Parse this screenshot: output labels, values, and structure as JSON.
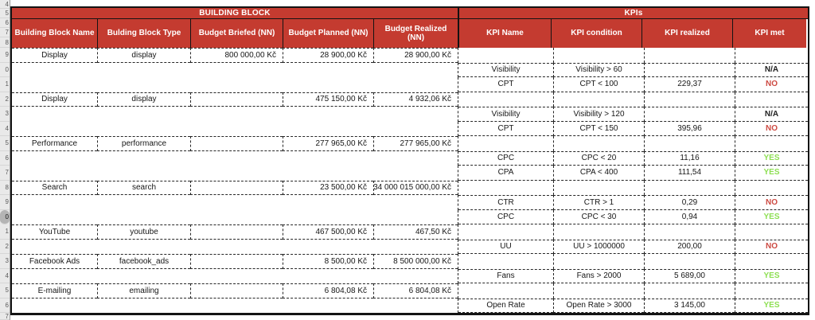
{
  "gutter": {
    "numbers": [
      "4",
      "5",
      "6",
      "7",
      "8",
      "9",
      "0",
      "1",
      "2",
      "3",
      "4",
      "5",
      "6",
      "7",
      "8",
      "9",
      "0",
      "1",
      "2",
      "3",
      "4",
      "5",
      "6",
      "7"
    ],
    "selected_index": 16
  },
  "table": {
    "sections": [
      {
        "title": "BUILDING BLOCK",
        "columns": [
          "Building Block Name",
          "Bulding Block Type",
          "Budget Briefed (NN)",
          "Budget Planned (NN)",
          "Budget Realized (NN)"
        ]
      },
      {
        "title": "KPIs",
        "columns": [
          "KPI Name",
          "KPI condition",
          "KPI realized",
          "KPI met"
        ]
      }
    ],
    "rows": [
      {
        "row": 9,
        "side": "left",
        "cells": [
          "Display",
          "display",
          "800 000,00 Kč",
          "28 900,00 Kč",
          "28 900,00 Kč"
        ]
      },
      {
        "row": 10,
        "side": "right",
        "cells": [
          "Visibility",
          "Visibility > 60",
          "",
          "N/A"
        ]
      },
      {
        "row": 11,
        "side": "right",
        "cells": [
          "CPT",
          "CPT < 100",
          "229,37",
          "NO"
        ]
      },
      {
        "row": 12,
        "side": "left",
        "cells": [
          "Display",
          "display",
          "",
          "475 150,00 Kč",
          "4 932,06 Kč"
        ]
      },
      {
        "row": 13,
        "side": "right",
        "cells": [
          "Visibility",
          "Visibility > 120",
          "",
          "N/A"
        ]
      },
      {
        "row": 14,
        "side": "right",
        "cells": [
          "CPT",
          "CPT < 150",
          "395,96",
          "NO"
        ]
      },
      {
        "row": 15,
        "side": "left",
        "cells": [
          "Performance",
          "performance",
          "",
          "277 965,00 Kč",
          "277 965,00 Kč"
        ]
      },
      {
        "row": 16,
        "side": "right",
        "cells": [
          "CPC",
          "CPC < 20",
          "11,16",
          "YES"
        ]
      },
      {
        "row": 17,
        "side": "right",
        "cells": [
          "CPA",
          "CPA < 400",
          "111,54",
          "YES"
        ]
      },
      {
        "row": 18,
        "side": "left",
        "cells": [
          "Search",
          "search",
          "",
          "23 500,00 Kč",
          "34 000 015 000,00 Kč"
        ]
      },
      {
        "row": 19,
        "side": "right",
        "cells": [
          "CTR",
          "CTR > 1",
          "0,29",
          "NO"
        ]
      },
      {
        "row": 20,
        "side": "right",
        "cells": [
          "CPC",
          "CPC < 30",
          "0,94",
          "YES"
        ]
      },
      {
        "row": 21,
        "side": "left",
        "cells": [
          "YouTube",
          "youtube",
          "",
          "467 500,00 Kč",
          "467,50 Kč"
        ]
      },
      {
        "row": 22,
        "side": "right",
        "cells": [
          "UU",
          "UU > 1000000",
          "200,00",
          "NO"
        ]
      },
      {
        "row": 23,
        "side": "left",
        "cells": [
          "Facebook Ads",
          "facebook_ads",
          "",
          "8 500,00 Kč",
          "8 500 000,00 Kč"
        ]
      },
      {
        "row": 24,
        "side": "right",
        "cells": [
          "Fans",
          "Fans > 2000",
          "5 689,00",
          "YES"
        ]
      },
      {
        "row": 25,
        "side": "left",
        "cells": [
          "E-mailing",
          "emailing",
          "",
          "6 804,08 Kč",
          "6 804,08 Kč"
        ]
      },
      {
        "row": 26,
        "side": "right",
        "cells": [
          "Open Rate",
          "Open Rate > 3000",
          "3 145,00",
          "YES"
        ]
      }
    ]
  },
  "colors": {
    "header_bg": "#c43b30",
    "header_text": "#ffffff",
    "kpi_met_yes": "#8ddf52",
    "kpi_met_no": "#cd4a42",
    "kpi_met_na": "#1f1f1f"
  }
}
